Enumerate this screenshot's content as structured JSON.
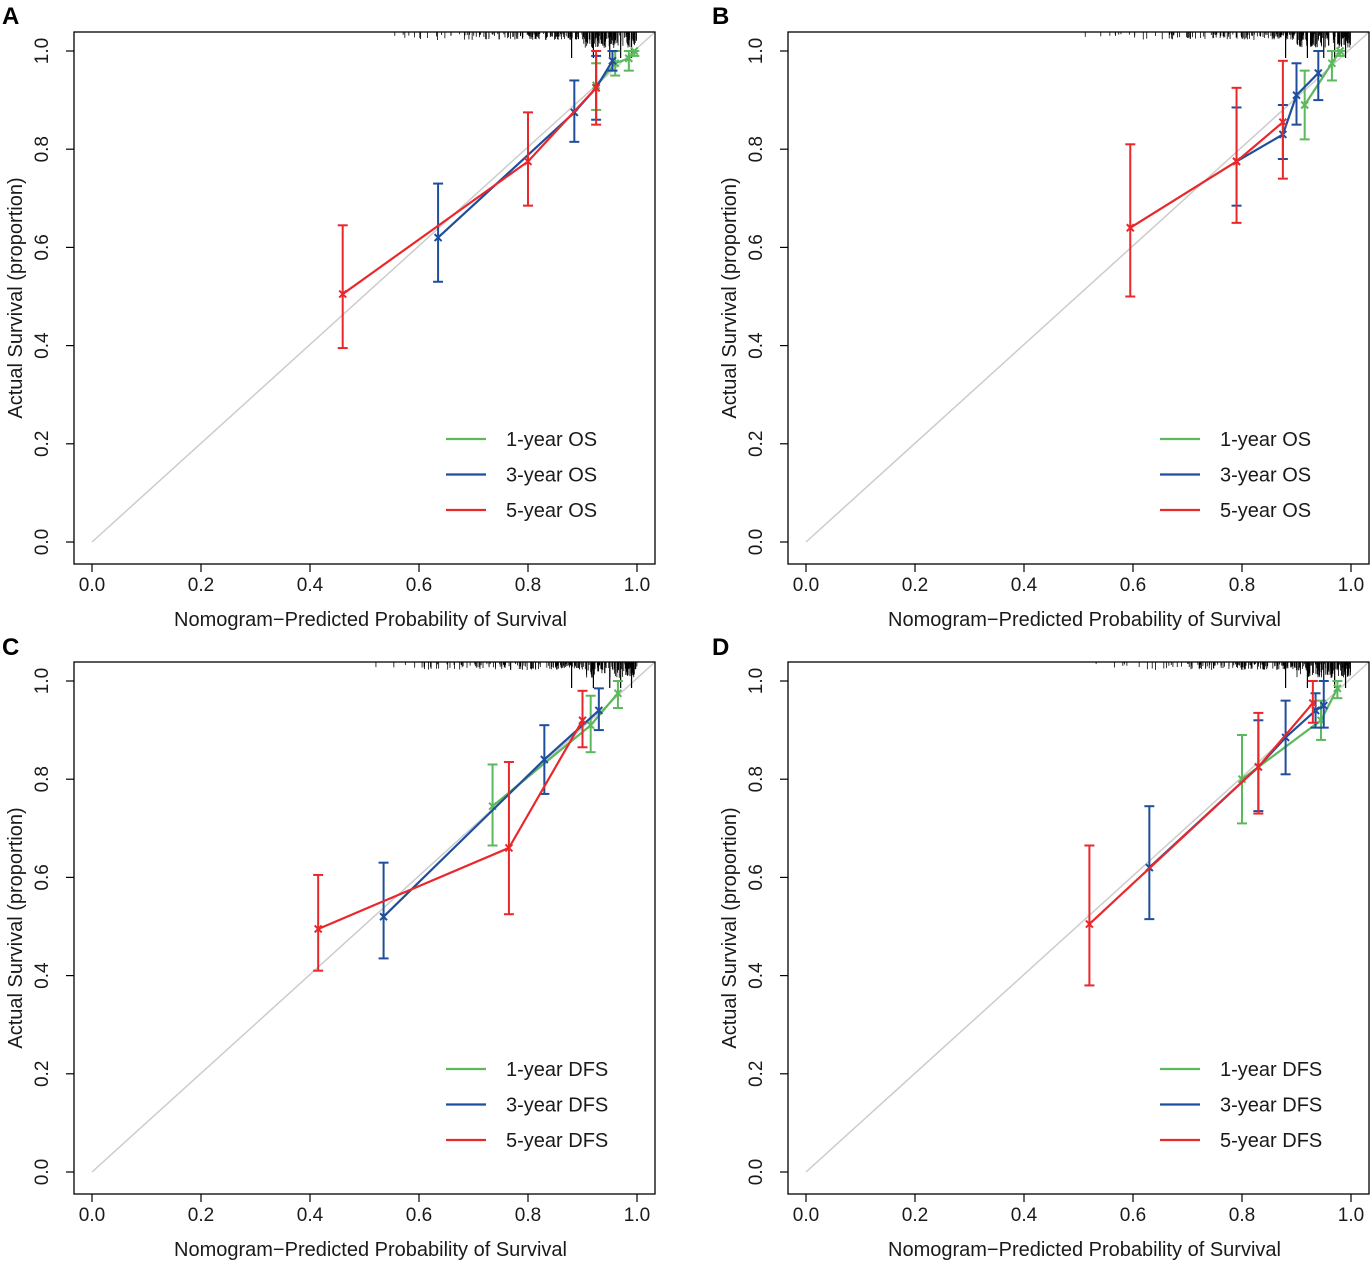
{
  "colors": {
    "one_year": "#5cb85c",
    "three_year": "#1f4e9c",
    "five_year": "#e8282b",
    "ideal": "#cccccc",
    "axis": "#000000"
  },
  "chart_data": [
    {
      "type": "line",
      "panel": "A",
      "xlabel": "Nomogram−Predicted Probability of Survival",
      "ylabel": "Actual Survival (proportion)",
      "xlim": [
        0.0,
        1.0
      ],
      "ylim": [
        0.0,
        1.0
      ],
      "xticks": [
        "0.0",
        "0.2",
        "0.4",
        "0.6",
        "0.8",
        "1.0"
      ],
      "yticks": [
        "0.0",
        "0.2",
        "0.4",
        "0.6",
        "0.8",
        "1.0"
      ],
      "legend_position": "bottom-right",
      "reference_line": "diagonal",
      "rug": "top",
      "series": [
        {
          "name": "1-year OS",
          "color_key": "one_year",
          "x": [
            0.925,
            0.96,
            0.985,
            0.995
          ],
          "y": [
            0.93,
            0.975,
            0.985,
            1.0
          ],
          "lower": [
            0.88,
            0.95,
            0.96,
            0.99
          ],
          "upper": [
            0.975,
            1.0,
            1.0,
            1.0
          ]
        },
        {
          "name": "3-year OS",
          "color_key": "three_year",
          "x": [
            0.635,
            0.885,
            0.925,
            0.955
          ],
          "y": [
            0.62,
            0.875,
            0.925,
            0.98
          ],
          "lower": [
            0.53,
            0.815,
            0.86,
            0.96
          ],
          "upper": [
            0.73,
            0.94,
            0.99,
            1.0
          ]
        },
        {
          "name": "5-year OS",
          "color_key": "five_year",
          "x": [
            0.46,
            0.8,
            0.925
          ],
          "y": [
            0.505,
            0.775,
            0.925
          ],
          "lower": [
            0.395,
            0.685,
            0.85
          ],
          "upper": [
            0.645,
            0.875,
            1.0
          ]
        }
      ]
    },
    {
      "type": "line",
      "panel": "B",
      "xlabel": "Nomogram−Predicted Probability of Survival",
      "ylabel": "Actual Survival (proportion)",
      "xlim": [
        0.0,
        1.0
      ],
      "ylim": [
        0.0,
        1.0
      ],
      "xticks": [
        "0.0",
        "0.2",
        "0.4",
        "0.6",
        "0.8",
        "1.0"
      ],
      "yticks": [
        "0.0",
        "0.2",
        "0.4",
        "0.6",
        "0.8",
        "1.0"
      ],
      "legend_position": "bottom-right",
      "reference_line": "diagonal",
      "rug": "top",
      "series": [
        {
          "name": "1-year OS",
          "color_key": "one_year",
          "x": [
            0.915,
            0.965,
            0.98
          ],
          "y": [
            0.89,
            0.975,
            1.0
          ],
          "lower": [
            0.82,
            0.94,
            0.99
          ],
          "upper": [
            0.96,
            1.0,
            1.0
          ]
        },
        {
          "name": "3-year OS",
          "color_key": "three_year",
          "x": [
            0.79,
            0.875,
            0.9,
            0.94
          ],
          "y": [
            0.775,
            0.83,
            0.91,
            0.955
          ],
          "lower": [
            0.685,
            0.78,
            0.85,
            0.9
          ],
          "upper": [
            0.885,
            0.89,
            0.975,
            1.0
          ]
        },
        {
          "name": "5-year OS",
          "color_key": "five_year",
          "x": [
            0.595,
            0.79,
            0.875
          ],
          "y": [
            0.64,
            0.775,
            0.855
          ],
          "lower": [
            0.5,
            0.65,
            0.74
          ],
          "upper": [
            0.81,
            0.925,
            0.98
          ]
        }
      ]
    },
    {
      "type": "line",
      "panel": "C",
      "xlabel": "Nomogram−Predicted Probability of Survival",
      "ylabel": "Actual Survival (proportion)",
      "xlim": [
        0.0,
        1.0
      ],
      "ylim": [
        0.0,
        1.0
      ],
      "xticks": [
        "0.0",
        "0.2",
        "0.4",
        "0.6",
        "0.8",
        "1.0"
      ],
      "yticks": [
        "0.0",
        "0.2",
        "0.4",
        "0.6",
        "0.8",
        "1.0"
      ],
      "legend_position": "bottom-right",
      "reference_line": "diagonal",
      "rug": "top",
      "series": [
        {
          "name": "1-year DFS",
          "color_key": "one_year",
          "x": [
            0.735,
            0.915,
            0.965
          ],
          "y": [
            0.745,
            0.91,
            0.975
          ],
          "lower": [
            0.665,
            0.855,
            0.945
          ],
          "upper": [
            0.83,
            0.97,
            1.0
          ]
        },
        {
          "name": "3-year DFS",
          "color_key": "three_year",
          "x": [
            0.535,
            0.83,
            0.93
          ],
          "y": [
            0.52,
            0.84,
            0.94
          ],
          "lower": [
            0.435,
            0.77,
            0.9
          ],
          "upper": [
            0.63,
            0.91,
            0.985
          ]
        },
        {
          "name": "5-year DFS",
          "color_key": "five_year",
          "x": [
            0.415,
            0.765,
            0.9
          ],
          "y": [
            0.495,
            0.66,
            0.92
          ],
          "lower": [
            0.41,
            0.525,
            0.865
          ],
          "upper": [
            0.605,
            0.835,
            0.98
          ]
        }
      ]
    },
    {
      "type": "line",
      "panel": "D",
      "xlabel": "Nomogram−Predicted Probability of Survival",
      "ylabel": "Actual Survival (proportion)",
      "xlim": [
        0.0,
        1.0
      ],
      "ylim": [
        0.0,
        1.0
      ],
      "xticks": [
        "0.0",
        "0.2",
        "0.4",
        "0.6",
        "0.8",
        "1.0"
      ],
      "yticks": [
        "0.0",
        "0.2",
        "0.4",
        "0.6",
        "0.8",
        "1.0"
      ],
      "legend_position": "bottom-right",
      "reference_line": "diagonal",
      "rug": "top",
      "series": [
        {
          "name": "1-year DFS",
          "color_key": "one_year",
          "x": [
            0.8,
            0.945,
            0.975
          ],
          "y": [
            0.8,
            0.92,
            0.985
          ],
          "lower": [
            0.71,
            0.88,
            0.965
          ],
          "upper": [
            0.89,
            0.96,
            1.0
          ]
        },
        {
          "name": "3-year DFS",
          "color_key": "three_year",
          "x": [
            0.63,
            0.83,
            0.88,
            0.935,
            0.95
          ],
          "y": [
            0.62,
            0.825,
            0.885,
            0.94,
            0.95
          ],
          "lower": [
            0.515,
            0.735,
            0.81,
            0.905,
            0.905
          ],
          "upper": [
            0.745,
            0.92,
            0.96,
            0.975,
            1.0
          ]
        },
        {
          "name": "5-year DFS",
          "color_key": "five_year",
          "x": [
            0.52,
            0.83,
            0.93
          ],
          "y": [
            0.505,
            0.825,
            0.955
          ],
          "lower": [
            0.38,
            0.73,
            0.915
          ],
          "upper": [
            0.665,
            0.935,
            1.0
          ]
        }
      ]
    }
  ]
}
